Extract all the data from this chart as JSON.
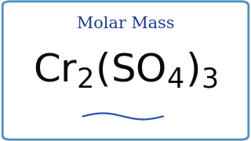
{
  "background_color": "#ffffff",
  "border_color": "#4a8fc0",
  "title_text": "Molar Mass",
  "title_color": "#1a3a8a",
  "title_fontsize": 15,
  "formula_color": "#0a0a0a",
  "formula_fontsize": 36,
  "wave_color": "#2255aa",
  "fig_width": 3.2,
  "fig_height": 1.8,
  "dpi": 100
}
